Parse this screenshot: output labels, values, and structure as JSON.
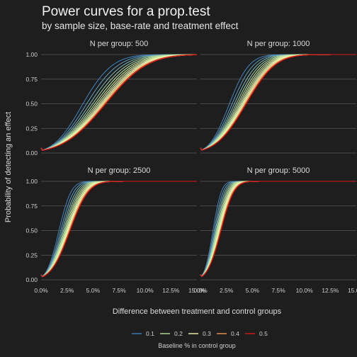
{
  "chart_data": {
    "type": "line",
    "title": "Power curves for a prop.test",
    "subtitle": "by sample size, base-rate and treatment effect",
    "xlabel": "Difference between treatment and control groups",
    "ylabel": "Probability of detecting an effect",
    "xlim": [
      0,
      0.15
    ],
    "ylim": [
      0,
      1
    ],
    "x_ticks": [
      0,
      0.025,
      0.05,
      0.075,
      0.1,
      0.125,
      0.15
    ],
    "x_tick_labels": [
      "0.0%",
      "2.5%",
      "5.0%",
      "7.5%",
      "10.0%",
      "12.5%",
      "15.0%"
    ],
    "y_ticks": [
      0,
      0.25,
      0.5,
      0.75,
      1
    ],
    "y_tick_labels": [
      "0.00",
      "0.25",
      "0.50",
      "0.75",
      "1.00"
    ],
    "grid": true,
    "legend": {
      "title": "Baseline % in control group",
      "placement": "bottom",
      "entries": [
        {
          "label": "0.1",
          "color": "#3a7eb8"
        },
        {
          "label": "0.2",
          "color": "#b9df9a"
        },
        {
          "label": "0.3",
          "color": "#f3f5b3"
        },
        {
          "label": "0.4",
          "color": "#f2904f"
        },
        {
          "label": "0.5",
          "color": "#d7191c"
        }
      ]
    },
    "alpha": 0.05,
    "baselines": [
      0.1,
      0.125,
      0.15,
      0.175,
      0.2,
      0.225,
      0.25,
      0.275,
      0.3,
      0.325,
      0.35,
      0.375,
      0.4,
      0.425,
      0.45,
      0.475,
      0.5
    ],
    "panels": [
      {
        "strip_label": "N per group: 500",
        "n": 500
      },
      {
        "strip_label": "N per group: 1000",
        "n": 1000
      },
      {
        "strip_label": "N per group: 2500",
        "n": 2500
      },
      {
        "strip_label": "N per group: 5000",
        "n": 5000
      }
    ]
  }
}
